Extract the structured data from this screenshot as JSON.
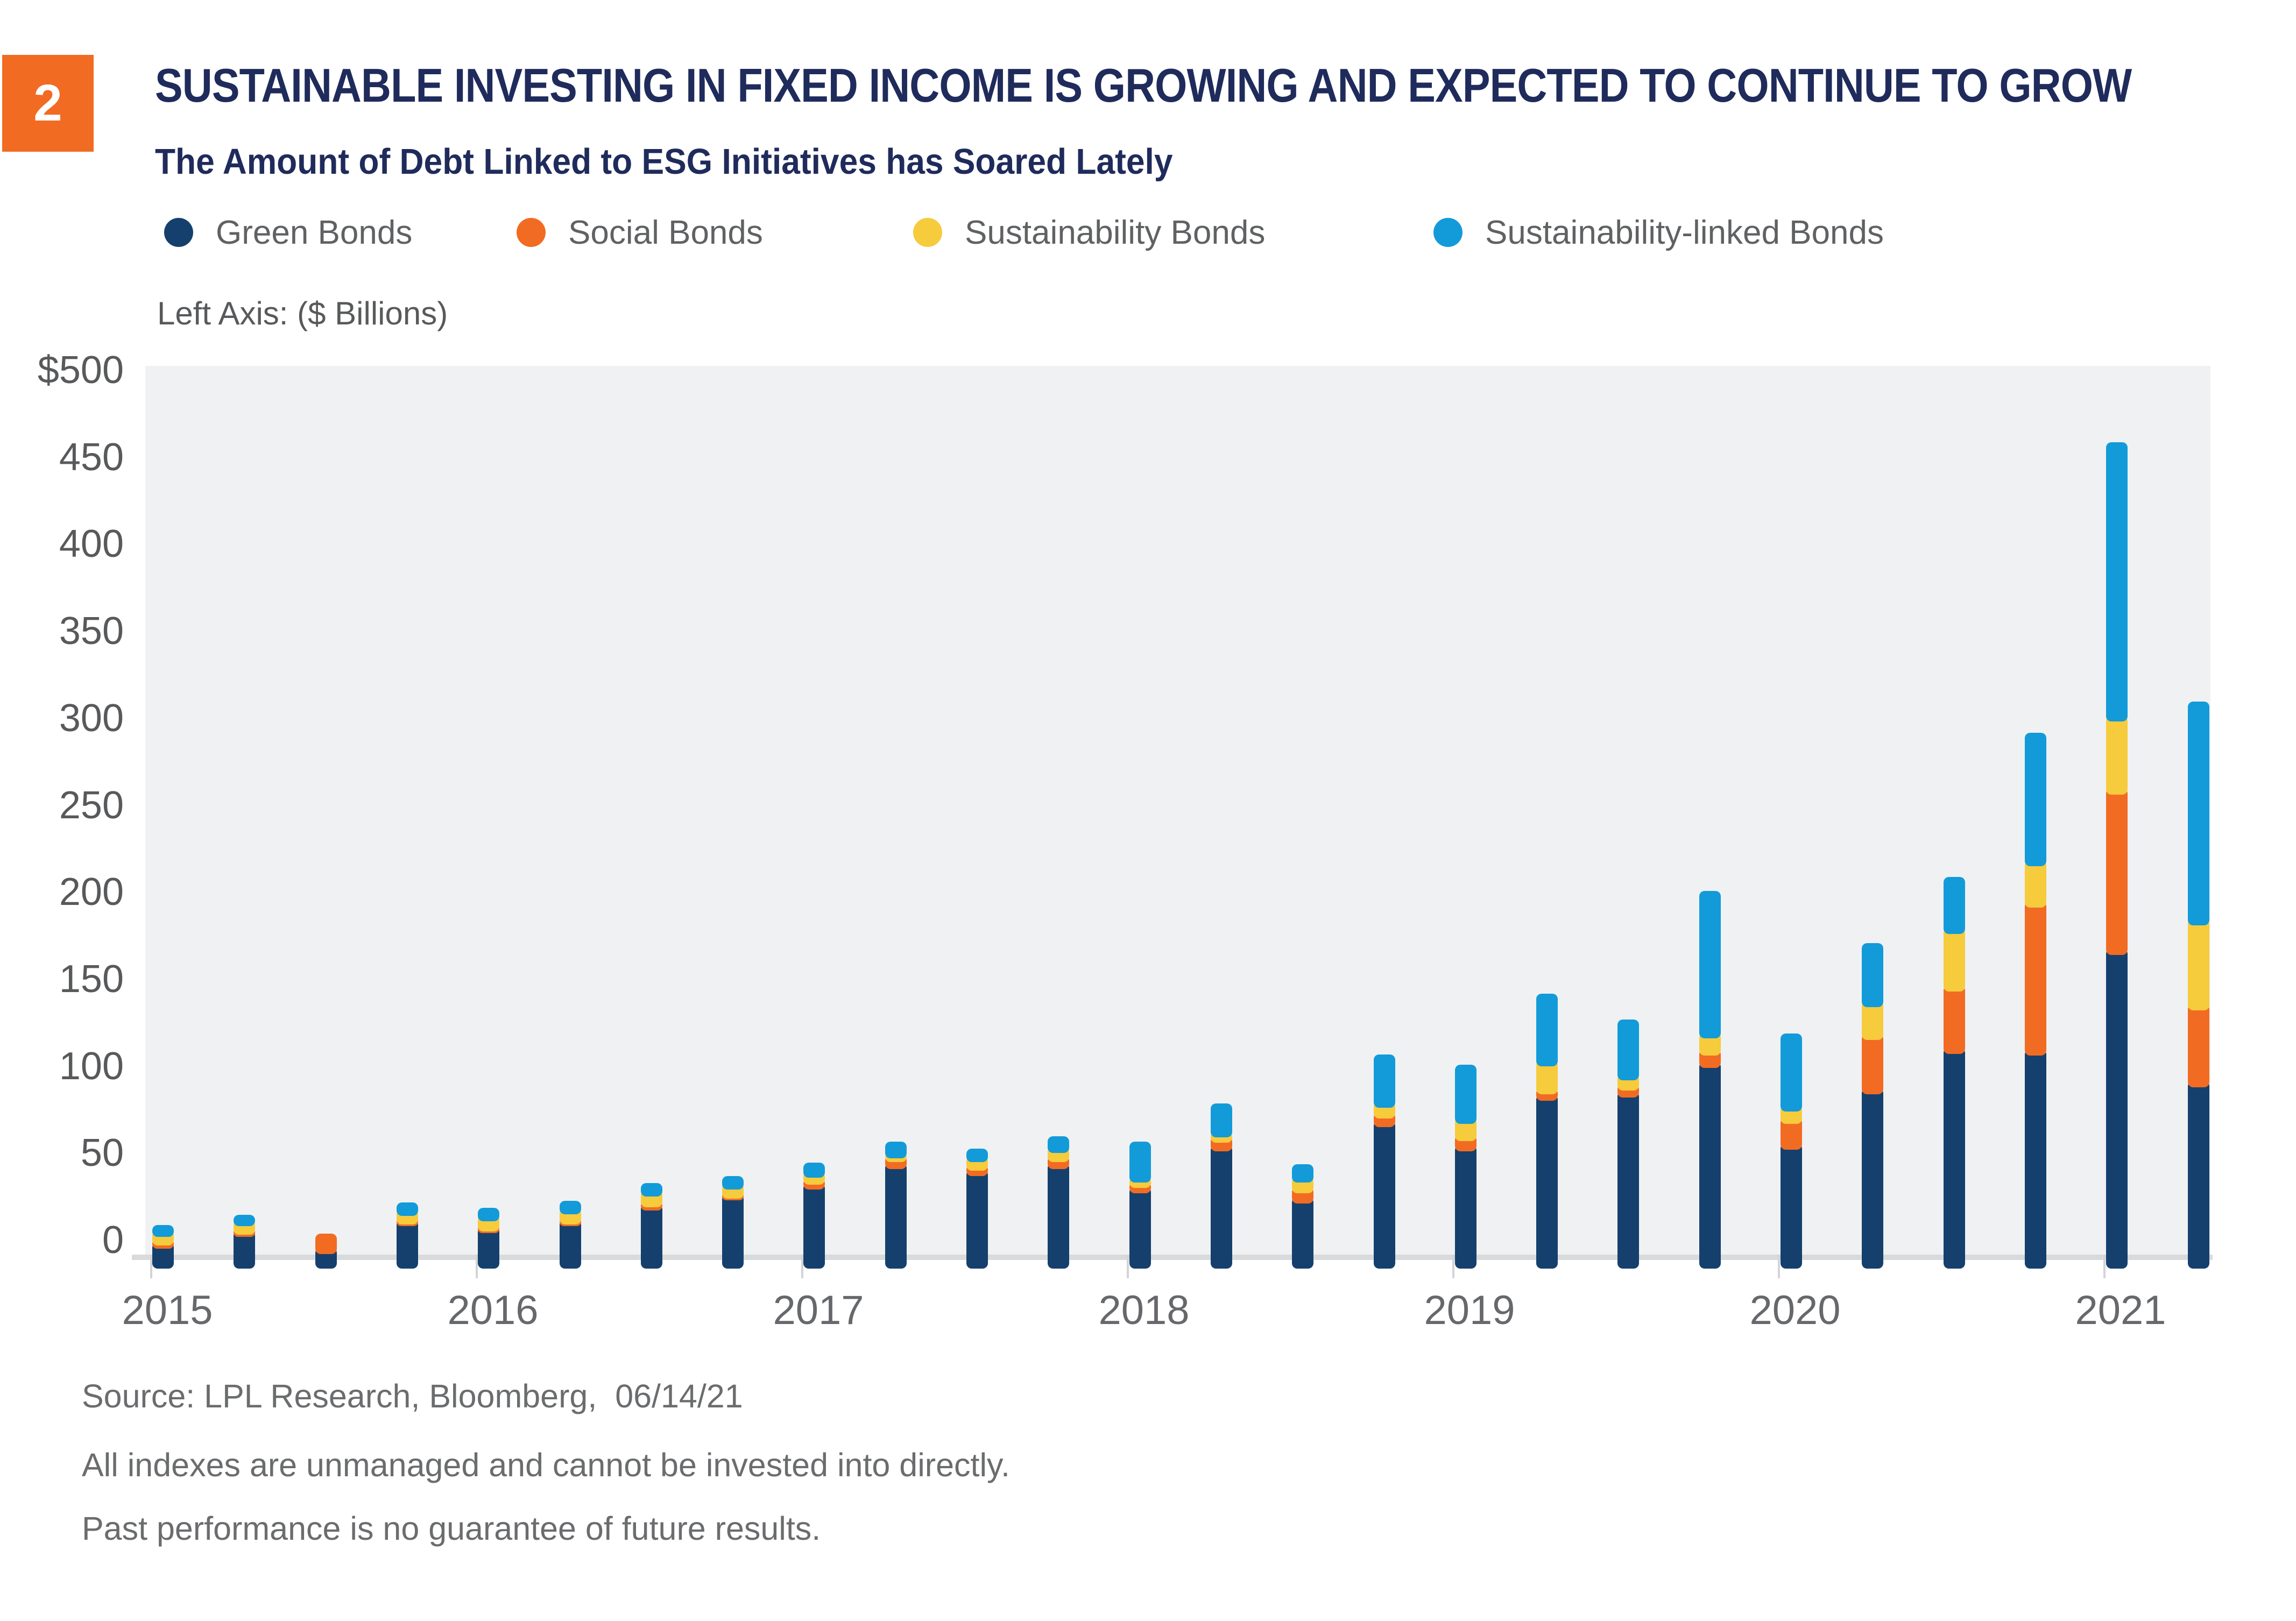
{
  "figure_number": "2",
  "header": {
    "title": "SUSTAINABLE INVESTING IN FIXED INCOME IS GROWING AND EXPECTED TO CONTINUE TO GROW",
    "subtitle": "The Amount of Debt Linked to ESG Initiatives has Soared Lately"
  },
  "axis_note": "Left Axis: ($ Billions)",
  "colors": {
    "accent_orange": "#F26B22",
    "title_navy": "#1F2B5B",
    "plot_background": "#F0F1F3",
    "axis_band": "#D8DADB",
    "label_gray": "#58595B"
  },
  "chart_data": {
    "type": "bar",
    "stacked": true,
    "title": "The Amount of Debt Linked to ESG Initiatives has Soared Lately",
    "ylabel": "$ Billions",
    "ylim": [
      0,
      500
    ],
    "grid": false,
    "legend_position": "top",
    "y_tick_labels": [
      "$500",
      "450",
      "400",
      "350",
      "300",
      "250",
      "200",
      "150",
      "100",
      "50",
      "0"
    ],
    "year_labels": [
      "2015",
      "2016",
      "2017",
      "2018",
      "2019",
      "2020",
      "2021"
    ],
    "categories": [
      "2015 Q1",
      "2015 Q2",
      "2015 Q3",
      "2015 Q4",
      "2016 Q1",
      "2016 Q2",
      "2016 Q3",
      "2016 Q4",
      "2017 Q1",
      "2017 Q2",
      "2017 Q3",
      "2017 Q4",
      "2018 Q1",
      "2018 Q2",
      "2018 Q3",
      "2018 Q4",
      "2019 Q1",
      "2019 Q2",
      "2019 Q3",
      "2019 Q4",
      "2020 Q1",
      "2020 Q2",
      "2020 Q3",
      "2020 Q4",
      "2021 Q1",
      "2021 Q2"
    ],
    "series": [
      {
        "name": "Green Bonds",
        "color": "#15406D",
        "values": [
          7,
          14,
          4,
          20,
          16,
          20,
          29,
          35,
          41,
          53,
          49,
          53,
          39,
          63,
          33,
          77,
          63,
          92,
          94,
          111,
          64,
          96,
          119,
          118,
          176,
          100
        ]
      },
      {
        "name": "Social Bonds",
        "color": "#F26B22",
        "values": [
          2,
          1,
          8,
          1,
          1,
          1,
          2,
          1,
          3,
          4,
          3,
          4,
          3,
          5,
          6,
          5,
          6,
          4,
          4,
          7,
          15,
          31,
          36,
          85,
          92,
          44
        ]
      },
      {
        "name": "Sustainability Bonds",
        "color": "#F6CB3C",
        "values": [
          5,
          5,
          0,
          5,
          6,
          6,
          6,
          5,
          4,
          2,
          5,
          5,
          3,
          3,
          6,
          6,
          10,
          16,
          6,
          10,
          7,
          19,
          33,
          24,
          42,
          49
        ]
      },
      {
        "name": "Sustainability-linked Bonds",
        "color": "#129BD8",
        "values": [
          3,
          3,
          0,
          4,
          4,
          4,
          4,
          4,
          5,
          6,
          4,
          6,
          20,
          16,
          7,
          27,
          30,
          38,
          31,
          81,
          41,
          33,
          29,
          73,
          157,
          125
        ]
      }
    ]
  },
  "footer": {
    "lines": [
      "Source: LPL Research, Bloomberg,  06/14/21",
      "All indexes are unmanaged and cannot be invested into directly.",
      "Past performance is no guarantee of future results."
    ]
  }
}
